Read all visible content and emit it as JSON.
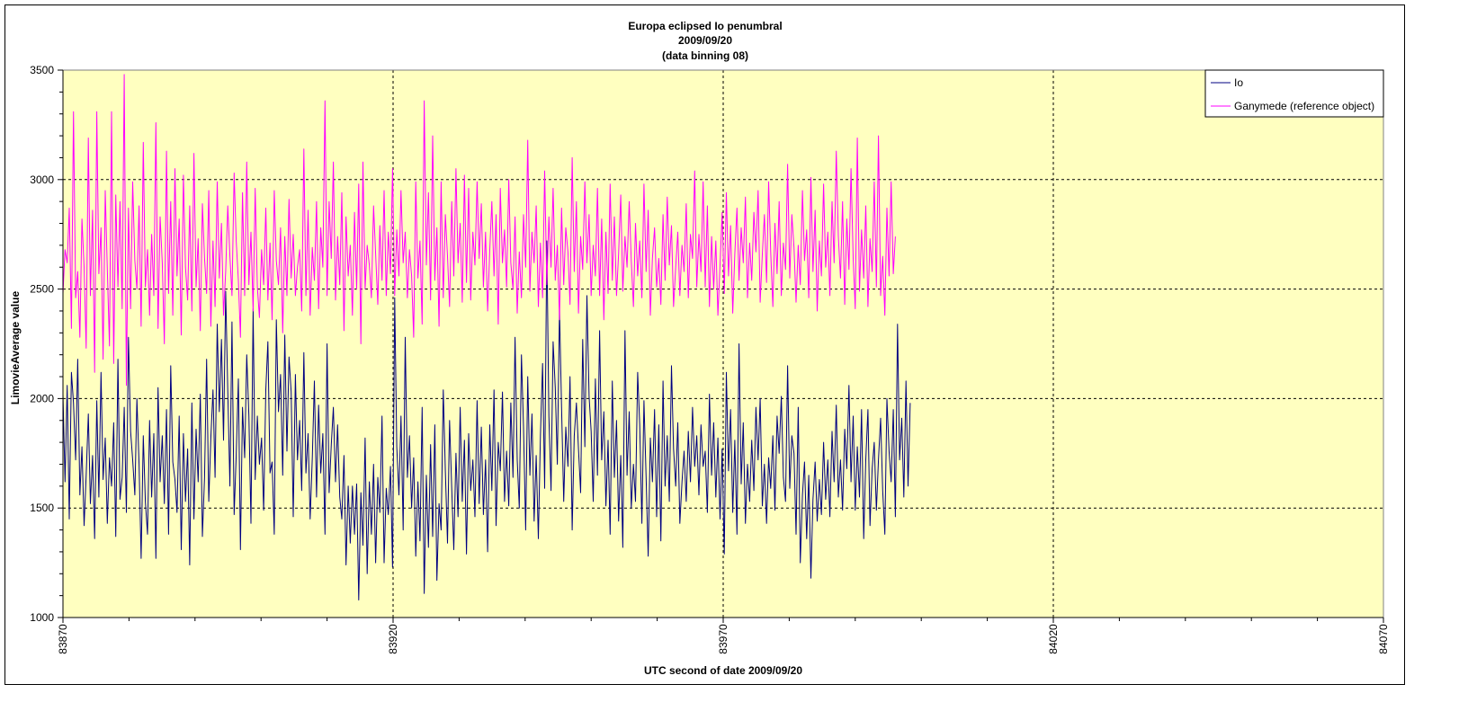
{
  "chart_data": {
    "type": "line",
    "title": [
      "Europa eclipsed Io penumbral",
      "2009/09/20",
      "(data binning 08)"
    ],
    "xlabel": "UTC second  of date 2009/09/20",
    "ylabel": "LimovieAverage value",
    "xlim": [
      83870,
      84070
    ],
    "ylim": [
      1000,
      3500
    ],
    "x_ticks": [
      "83870",
      "83920",
      "83970",
      "84020",
      "84070"
    ],
    "y_ticks": [
      "1000",
      "1500",
      "2000",
      "2500",
      "3000",
      "3500"
    ],
    "grid": "dashed",
    "legend_position": "top-right",
    "plot_bg": "#ffffc0",
    "series": [
      {
        "name": "Io",
        "color": "#000080",
        "x_start": 83870,
        "x_step": 0.32,
        "values": [
          2020,
          1620,
          2060,
          1450,
          2120,
          1980,
          1720,
          2180,
          1560,
          1780,
          1420,
          1650,
          1930,
          1520,
          1740,
          1360,
          1990,
          1550,
          2120,
          1630,
          1820,
          1430,
          1730,
          1600,
          1890,
          1370,
          2180,
          1540,
          1640,
          1960,
          1480,
          2280,
          1850,
          1720,
          1560,
          2000,
          1700,
          1270,
          1830,
          1530,
          1380,
          1900,
          1550,
          1840,
          1270,
          2050,
          1620,
          1830,
          1520,
          1950,
          1380,
          2150,
          1710,
          1630,
          1480,
          1920,
          1310,
          1840,
          1530,
          1770,
          1240,
          1980,
          1450,
          1860,
          1620,
          2020,
          1370,
          1640,
          2180,
          1530,
          1820,
          2040,
          1640,
          2340,
          1940,
          2270,
          1810,
          2490,
          2040,
          1600,
          2350,
          1470,
          1740,
          2090,
          1310,
          1960,
          1730,
          2200,
          1920,
          1430,
          2410,
          1630,
          1920,
          1700,
          1820,
          1490,
          2040,
          2260,
          1660,
          1710,
          1380,
          2360,
          1940,
          2110,
          1650,
          2290,
          1760,
          2190,
          2030,
          1460,
          2110,
          1720,
          1900,
          1580,
          2210,
          1660,
          1840,
          1450,
          1730,
          2080,
          1550,
          1970,
          1660,
          1840,
          1380,
          2250,
          1570,
          1790,
          1960,
          1620,
          1880,
          1550,
          1450,
          1740,
          1240,
          1600,
          1340,
          1600,
          1380,
          1610,
          1080,
          1570,
          1330,
          1820,
          1200,
          1620,
          1380,
          1700,
          1250,
          1640,
          1480,
          1920,
          1250,
          1590,
          1470,
          1690,
          1230,
          2460,
          1780,
          1560,
          1920,
          1400,
          2280,
          1640,
          1830,
          1500,
          1730,
          1280,
          1620,
          1350,
          1960,
          1110,
          1650,
          1320,
          1790,
          1370,
          1880,
          1170,
          1520,
          1400,
          2040,
          1670,
          1340,
          1900,
          1590,
          1310,
          1750,
          1460,
          1960,
          1530,
          1810,
          1290,
          1840,
          1580,
          1720,
          1460,
          1990,
          1520,
          1870,
          1470,
          1720,
          1300,
          1880,
          1580,
          2040,
          1420,
          1800,
          1670,
          2030,
          1530,
          1760,
          1510,
          1980,
          1640,
          2280,
          1720,
          1500,
          2200,
          1870,
          1400,
          2100,
          1650,
          1930,
          1440,
          1740,
          1360,
          1830,
          2160,
          1590,
          2720,
          1920,
          1580,
          2260,
          2050,
          1700,
          2410,
          1960,
          1530,
          1870,
          1690,
          2100,
          1400,
          1830,
          1980,
          1770,
          1570,
          2270,
          1780,
          2470,
          2010,
          1850,
          1530,
          2090,
          1650,
          2310,
          1720,
          1940,
          1510,
          1810,
          1380,
          2080,
          1640,
          1900,
          1440,
          1740,
          1320,
          2310,
          1650,
          1940,
          1500,
          1700,
          1530,
          2120,
          1880,
          1430,
          1990,
          1640,
          1280,
          1820,
          1620,
          1950,
          1460,
          1880,
          1350,
          2080,
          1600,
          1830,
          1530,
          2150,
          1770,
          1600,
          1890,
          1430,
          1620,
          1760,
          1530,
          1850,
          1620,
          1960,
          1690,
          1830,
          1560,
          1880,
          1690,
          1760,
          1480,
          2020,
          1650,
          1890,
          1550,
          1820,
          1450,
          1770,
          1290,
          2120,
          1670,
          1950,
          1480,
          1810,
          1380,
          2250,
          1610,
          1890,
          1430,
          1700,
          1530,
          1810,
          1580,
          1960,
          1720,
          2000,
          1510,
          1700,
          1430,
          1730,
          1590,
          1830,
          1490,
          1920,
          1750,
          2010,
          1640,
          1530,
          2150,
          1590,
          1830,
          1750,
          1380,
          1960,
          1250,
          1560,
          1710,
          1360,
          1650,
          1180,
          1540,
          1710,
          1440,
          1630,
          1470,
          1800,
          1540,
          1720,
          1460,
          1850,
          1620,
          1970,
          1550,
          1720,
          1490,
          1860,
          1680,
          2060,
          1620,
          1920,
          1490,
          1780,
          1550,
          1950,
          1360,
          1720,
          1950,
          1420,
          1680,
          1800,
          1490,
          1720,
          1910,
          1580,
          1380,
          2000,
          1760,
          1620,
          1950,
          1460,
          2340,
          1720,
          1910,
          1550,
          2080,
          1600,
          1980
        ]
      },
      {
        "name": "Ganymede (reference object)",
        "color": "#ff00ff",
        "x_start": 83870,
        "x_step": 0.32,
        "values": [
          2480,
          2680,
          2620,
          2870,
          2320,
          3310,
          2460,
          2580,
          2280,
          2820,
          2600,
          2230,
          3190,
          2470,
          2860,
          2120,
          3310,
          2570,
          2780,
          2180,
          2950,
          2590,
          2240,
          3310,
          2160,
          2930,
          2510,
          2900,
          2410,
          3480,
          2060,
          2870,
          2410,
          2990,
          2630,
          2500,
          2880,
          2330,
          3170,
          2510,
          2680,
          2380,
          2750,
          2470,
          3260,
          2320,
          2830,
          2620,
          2250,
          3130,
          2480,
          2900,
          2380,
          3050,
          2560,
          2820,
          2290,
          3020,
          2600,
          2450,
          2880,
          2400,
          3120,
          2510,
          2730,
          2310,
          2890,
          2640,
          2480,
          2950,
          2330,
          2720,
          2420,
          2990,
          2550,
          2800,
          2380,
          2580,
          2880,
          2650,
          2470,
          3030,
          2720,
          2540,
          2280,
          2940,
          2470,
          3080,
          2520,
          2760,
          2400,
          2960,
          2510,
          2370,
          2680,
          2520,
          2870,
          2450,
          2710,
          2360,
          2950,
          2630,
          2520,
          2780,
          2300,
          2740,
          2470,
          2910,
          2550,
          2750,
          2470,
          2600,
          2680,
          2400,
          3140,
          2470,
          2860,
          2380,
          2690,
          2540,
          2900,
          2410,
          2780,
          2600,
          3360,
          2470,
          2900,
          2640,
          3080,
          2450,
          2740,
          2520,
          2940,
          2310,
          2830,
          2560,
          2700,
          2380,
          2850,
          2500,
          2980,
          2250,
          3080,
          2500,
          2700,
          2610,
          2460,
          2880,
          2660,
          2430,
          2790,
          2540,
          2950,
          2470,
          2760,
          2570,
          3050,
          2470,
          2770,
          2560,
          2950,
          2620,
          2760,
          2460,
          2680,
          2560,
          2280,
          2990,
          2550,
          2720,
          2340,
          3360,
          2610,
          2940,
          2450,
          3200,
          2540,
          2780,
          2330,
          2990,
          2460,
          2840,
          2650,
          2420,
          2900,
          2560,
          3050,
          2620,
          2800,
          2440,
          3020,
          2530,
          2960,
          2450,
          2760,
          2610,
          2990,
          2640,
          2890,
          2510,
          2760,
          2400,
          2680,
          2900,
          2560,
          2840,
          2340,
          2960,
          2620,
          2770,
          2510,
          3000,
          2620,
          2500,
          2830,
          2390,
          2670,
          2460,
          2840,
          2600,
          3180,
          2490,
          2760,
          2620,
          2880,
          2420,
          2710,
          2460,
          3040,
          2520,
          2830,
          2600,
          2960,
          2540,
          2700,
          2360,
          2870,
          2520,
          2780,
          2670,
          2430,
          3100,
          2580,
          2900,
          2390,
          2740,
          2590,
          2990,
          2620,
          2840,
          2470,
          2700,
          2560,
          2960,
          2470,
          2820,
          2360,
          2760,
          2480,
          2980,
          2540,
          2830,
          2470,
          2660,
          2930,
          2490,
          2740,
          2600,
          2900,
          2630,
          2420,
          2800,
          2560,
          2720,
          2460,
          2980,
          2580,
          2860,
          2380,
          2640,
          2780,
          2510,
          2640,
          2430,
          2840,
          2540,
          2920,
          2610,
          2790,
          2420,
          2600,
          2760,
          2470,
          2700,
          2580,
          2890,
          2460,
          2750,
          2640,
          3040,
          2510,
          2750,
          2580,
          2990,
          2510,
          2880,
          2420,
          2740,
          2500,
          2720,
          2380,
          2610,
          2850,
          2480,
          2940,
          2560,
          2790,
          2390,
          2660,
          2870,
          2540,
          2780,
          2620,
          2920,
          2460,
          2710,
          2540,
          2850,
          2670,
          2950,
          2440,
          2660,
          2840,
          2530,
          2990,
          2670,
          2420,
          2800,
          2570,
          2900,
          2470,
          2710,
          2590,
          3070,
          2550,
          2840,
          2690,
          2440,
          2700,
          2520,
          2950,
          2630,
          2770,
          2460,
          3010,
          2580,
          2860,
          2400,
          2720,
          2560,
          2980,
          2600,
          2760,
          2470,
          2900,
          2620,
          3130,
          2740,
          2550,
          2900,
          2430,
          2820,
          2590,
          3050,
          2640,
          2410,
          3190,
          2490,
          2770,
          2550,
          2880,
          2420,
          2730,
          2580,
          2990,
          2510,
          3200,
          2470,
          2650,
          2380,
          2870,
          2560,
          2990,
          2570,
          2740
        ]
      }
    ]
  }
}
